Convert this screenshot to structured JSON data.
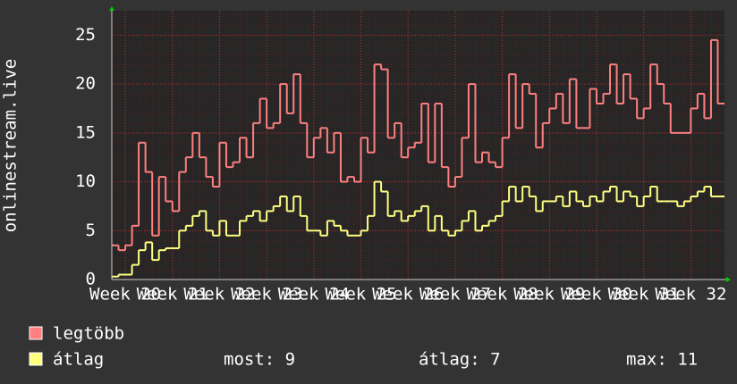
{
  "chart_data": {
    "type": "step",
    "y_label": "onlinestream.live",
    "categories": [
      null,
      null,
      "Week 20",
      null,
      null,
      null,
      null,
      null,
      null,
      "Week 21",
      null,
      null,
      null,
      null,
      null,
      null,
      "Week 22",
      null,
      null,
      null,
      null,
      null,
      null,
      "Week 23",
      null,
      null,
      null,
      null,
      null,
      null,
      "Week 24",
      null,
      null,
      null,
      null,
      null,
      null,
      "Week 25",
      null,
      null,
      null,
      null,
      null,
      null,
      "Week 26",
      null,
      null,
      null,
      null,
      null,
      null,
      "Week 27",
      null,
      null,
      null,
      null,
      null,
      null,
      "Week 28",
      null,
      null,
      null,
      null,
      null,
      null,
      "Week 29",
      null,
      null,
      null,
      null,
      null,
      null,
      "Week 30",
      null,
      null,
      null,
      null,
      null,
      null,
      "Week 31",
      null,
      null,
      null,
      null,
      null,
      null,
      "Week 32",
      null,
      null,
      null,
      null
    ],
    "series": [
      {
        "name": "legtöbb",
        "color": "#ff7f7f",
        "values": [
          3.5,
          3,
          3.5,
          5.5,
          14,
          11,
          4.5,
          10.5,
          8,
          7,
          11,
          12.5,
          15,
          12.5,
          10.5,
          9.5,
          14,
          11.5,
          12,
          14.5,
          12.5,
          16,
          18.5,
          15.5,
          16,
          20,
          17,
          21,
          16,
          12.5,
          14.5,
          15.5,
          13,
          15,
          10,
          10.5,
          10,
          14.5,
          13,
          22,
          21.5,
          14.5,
          16,
          12.5,
          13.5,
          14,
          18,
          12,
          18,
          11.5,
          9.5,
          10.5,
          14.5,
          20,
          12,
          13,
          12,
          11.5,
          14.5,
          21,
          15.5,
          20,
          19,
          13.5,
          16,
          17.5,
          19,
          16,
          20.5,
          15.5,
          15.5,
          19.5,
          18,
          19,
          22,
          18,
          21,
          18.5,
          16.5,
          17.5,
          22,
          20,
          18,
          15,
          15,
          15,
          17.5,
          19,
          16.5,
          24.5,
          18
        ]
      },
      {
        "name": "átlag",
        "color": "#ffff80",
        "values": [
          0.3,
          0.5,
          0.5,
          1.5,
          3,
          3.8,
          2,
          3,
          3.2,
          3.2,
          5,
          5.5,
          6.5,
          7,
          5,
          4.5,
          6,
          4.5,
          4.5,
          6,
          6.5,
          7,
          6,
          7,
          7.5,
          8.5,
          7,
          8.5,
          6.5,
          5,
          5,
          4.5,
          6,
          5.5,
          5,
          4.5,
          4.5,
          5,
          6.5,
          10,
          9,
          6.5,
          7,
          6,
          6.5,
          7,
          7.5,
          5,
          6.5,
          5,
          4.5,
          5,
          6,
          7,
          5,
          5.5,
          6,
          6.5,
          8,
          9.5,
          8,
          9.5,
          8.5,
          7,
          8,
          8,
          8.5,
          7.5,
          9,
          8,
          7.5,
          8.5,
          8,
          9,
          9.5,
          8,
          9,
          8.5,
          7.5,
          8.5,
          9.5,
          8,
          8,
          8,
          7.5,
          8,
          8.5,
          9,
          9.5,
          8.5,
          8.5
        ]
      }
    ],
    "legend_stats": [
      "most: 9",
      "átlag: 7",
      "max: 11"
    ],
    "ylim": [
      0,
      27.5
    ],
    "yticks": [
      0,
      5,
      10,
      15,
      20,
      25
    ],
    "grid": true
  }
}
